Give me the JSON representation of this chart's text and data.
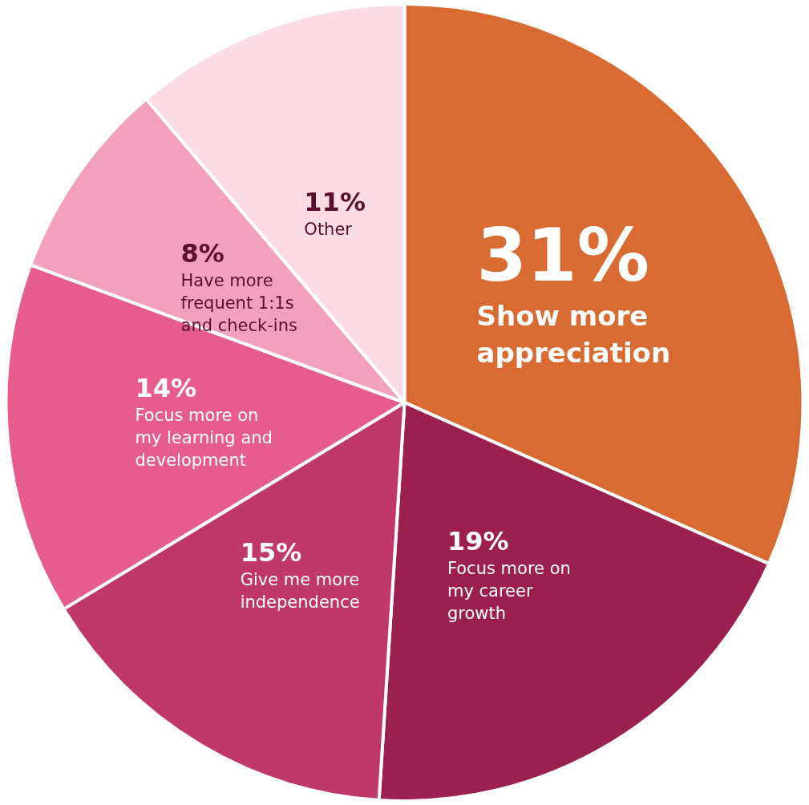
{
  "chart_data": {
    "type": "pie",
    "categories": [
      "Show more appreciation",
      "Focus more on my career growth",
      "Give me more independence",
      "Focus more on my learning and development",
      "Have more frequent 1:1s and check-ins",
      "Other"
    ],
    "values": [
      31,
      19,
      15,
      14,
      8,
      11
    ],
    "value_labels": [
      "31%",
      "19%",
      "15%",
      "14%",
      "8%",
      "11%"
    ],
    "colors": [
      "#d96b32",
      "#9b2050",
      "#c0386a",
      "#e65c8e",
      "#f2a0be",
      "#fbdce5"
    ],
    "legend": false
  }
}
